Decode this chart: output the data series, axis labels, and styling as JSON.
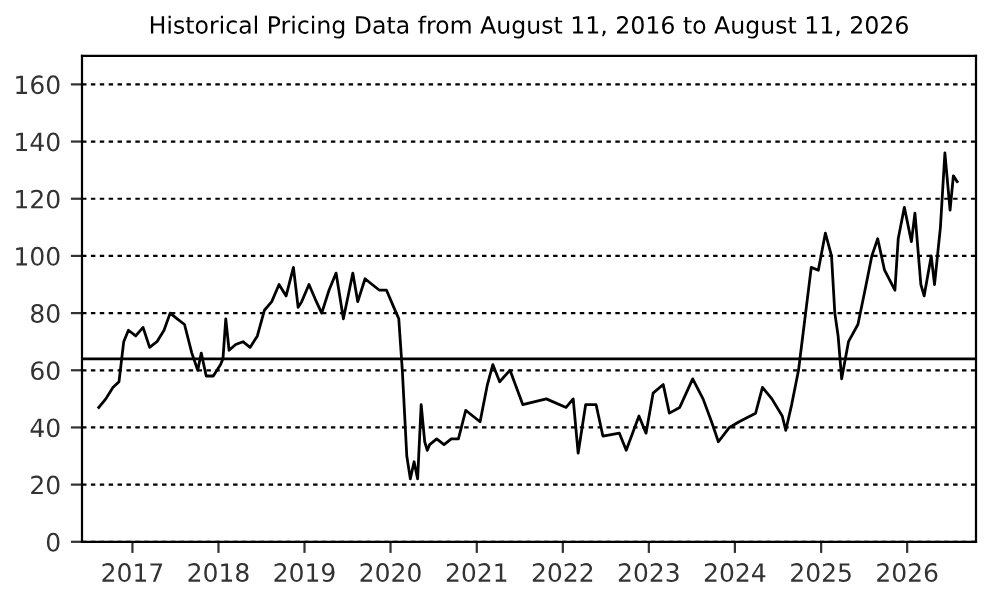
{
  "chart_data": {
    "type": "line",
    "title": "Historical Pricing Data from August 11, 2016 to August 11, 2026",
    "x": [
      "2016-08-11",
      "2016-09-10",
      "2016-10-10",
      "2016-11-05",
      "2016-11-25",
      "2016-12-15",
      "2017-01-15",
      "2017-02-15",
      "2017-03-15",
      "2017-04-15",
      "2017-05-15",
      "2017-06-10",
      "2017-07-10",
      "2017-08-10",
      "2017-09-10",
      "2017-10-05",
      "2017-10-20",
      "2017-11-10",
      "2017-12-10",
      "2018-01-10",
      "2018-01-20",
      "2018-02-01",
      "2018-02-15",
      "2018-03-15",
      "2018-04-15",
      "2018-05-15",
      "2018-06-15",
      "2018-07-15",
      "2018-08-15",
      "2018-09-15",
      "2018-10-15",
      "2018-11-15",
      "2018-12-05",
      "2018-12-20",
      "2019-01-20",
      "2019-02-15",
      "2019-03-15",
      "2019-04-15",
      "2019-05-15",
      "2019-06-15",
      "2019-07-05",
      "2019-07-25",
      "2019-08-15",
      "2019-09-15",
      "2019-10-15",
      "2019-11-15",
      "2019-12-15",
      "2020-01-15",
      "2020-02-05",
      "2020-02-20",
      "2020-03-10",
      "2020-03-25",
      "2020-04-10",
      "2020-04-25",
      "2020-05-10",
      "2020-05-25",
      "2020-06-05",
      "2020-06-15",
      "2020-07-15",
      "2020-08-15",
      "2020-09-15",
      "2020-10-15",
      "2020-11-15",
      "2020-12-15",
      "2021-01-15",
      "2021-02-15",
      "2021-03-10",
      "2021-04-08",
      "2021-05-22",
      "2021-07-15",
      "2021-10-23",
      "2022-01-15",
      "2022-02-14",
      "2022-03-07",
      "2022-04-08",
      "2022-05-22",
      "2022-06-20",
      "2022-08-29",
      "2022-09-27",
      "2022-11-20",
      "2022-12-20",
      "2023-01-19",
      "2023-03-03",
      "2023-03-29",
      "2023-05-12",
      "2023-07-06",
      "2023-08-19",
      "2023-09-24",
      "2023-10-23",
      "2023-12-09",
      "2024-01-19",
      "2024-03-29",
      "2024-04-27",
      "2024-06-06",
      "2024-07-20",
      "2024-08-04",
      "2024-08-29",
      "2024-09-27",
      "2024-10-27",
      "2024-11-20",
      "2024-12-20",
      "2025-01-19",
      "2025-02-14",
      "2025-02-28",
      "2025-03-14",
      "2025-03-29",
      "2025-04-27",
      "2025-06-06",
      "2025-07-06",
      "2025-08-04",
      "2025-08-29",
      "2025-09-27",
      "2025-11-10",
      "2025-11-24",
      "2025-12-20",
      "2026-01-19",
      "2026-02-03",
      "2026-02-28",
      "2026-03-14",
      "2026-04-13",
      "2026-04-27",
      "2026-05-22",
      "2026-06-10",
      "2026-07-02",
      "2026-07-16",
      "2026-08-01"
    ],
    "series": [
      {
        "color": "#000000",
        "values": [
          47,
          50,
          54,
          56,
          70,
          74,
          72,
          75,
          68,
          70,
          74,
          80,
          78,
          76,
          66,
          60,
          66,
          58,
          58,
          62,
          64,
          78,
          67,
          69,
          70,
          68,
          72,
          81,
          84,
          90,
          86,
          96,
          82,
          84,
          90,
          85,
          80,
          88,
          94,
          78,
          86,
          94,
          84,
          92,
          90,
          88,
          88,
          82,
          78,
          60,
          30,
          22,
          28,
          22,
          48,
          35,
          32,
          34,
          36,
          34,
          36,
          36,
          46,
          44,
          42,
          55,
          62,
          56,
          60,
          48,
          50,
          47,
          50,
          31,
          48,
          48,
          37,
          38,
          32,
          44,
          38,
          52,
          55,
          45,
          47,
          57,
          50,
          42,
          35,
          40,
          42,
          45,
          54,
          50,
          44,
          39,
          48,
          60,
          80,
          96,
          95,
          108,
          100,
          80,
          72,
          57,
          70,
          76,
          88,
          100,
          106,
          95,
          88,
          106,
          117,
          105,
          115,
          90,
          86,
          100,
          90,
          110,
          136,
          116,
          128,
          126
        ]
      }
    ],
    "xlim": [
      "2016-06-01",
      "2026-10-20"
    ],
    "xticks": [
      {
        "value": "2017-01-01",
        "label": "2017"
      },
      {
        "value": "2018-01-01",
        "label": "2018"
      },
      {
        "value": "2019-01-01",
        "label": "2019"
      },
      {
        "value": "2020-01-01",
        "label": "2020"
      },
      {
        "value": "2021-01-01",
        "label": "2021"
      },
      {
        "value": "2022-01-01",
        "label": "2022"
      },
      {
        "value": "2023-01-01",
        "label": "2023"
      },
      {
        "value": "2024-01-01",
        "label": "2024"
      },
      {
        "value": "2025-01-01",
        "label": "2025"
      },
      {
        "value": "2026-01-01",
        "label": "2026"
      }
    ],
    "ylim": [
      0,
      170
    ],
    "yticks": [
      0,
      20,
      40,
      60,
      80,
      100,
      120,
      140,
      160
    ],
    "grid": "y",
    "ref_lines": [
      {
        "axis": "y",
        "value": 64,
        "color": "#000000",
        "line_style": "solid"
      }
    ]
  }
}
